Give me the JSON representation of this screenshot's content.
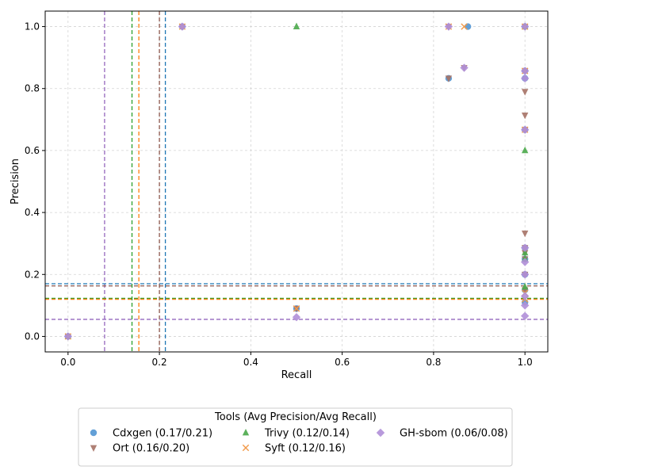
{
  "chart_data": {
    "type": "scatter",
    "xlabel": "Recall",
    "ylabel": "Precision",
    "xlim": [
      -0.05,
      1.05
    ],
    "ylim": [
      -0.05,
      1.05
    ],
    "xticks": [
      "0.0",
      "0.2",
      "0.4",
      "0.6",
      "0.8",
      "1.0"
    ],
    "yticks": [
      "0.0",
      "0.2",
      "0.4",
      "0.6",
      "0.8",
      "1.0"
    ],
    "grid": true,
    "legend": {
      "title": "Tools (Avg Precision/Avg Recall)",
      "placement": "bottom-center",
      "columns": 3
    },
    "series": [
      {
        "name": "Cdxgen (0.17/0.21)",
        "marker": "circle",
        "color": "#5b9bd5",
        "avg_precision": 0.17,
        "avg_recall": 0.21,
        "points": [
          [
            0.0,
            0.0
          ],
          [
            0.25,
            1.0
          ],
          [
            0.833,
            0.833
          ],
          [
            0.875,
            1.0
          ],
          [
            0.5,
            0.09
          ],
          [
            1.0,
            1.0
          ],
          [
            1.0,
            0.857
          ],
          [
            1.0,
            0.833
          ],
          [
            1.0,
            0.667
          ],
          [
            1.0,
            0.286
          ],
          [
            1.0,
            0.25
          ],
          [
            1.0,
            0.2
          ],
          [
            1.0,
            0.15
          ],
          [
            1.0,
            0.11
          ]
        ]
      },
      {
        "name": "Ort (0.16/0.20)",
        "marker": "triangle-down",
        "color": "#a67266",
        "avg_precision": 0.16,
        "avg_recall": 0.2,
        "points": [
          [
            0.0,
            0.0
          ],
          [
            0.25,
            1.0
          ],
          [
            0.833,
            1.0
          ],
          [
            0.833,
            0.833
          ],
          [
            0.867,
            0.867
          ],
          [
            0.5,
            0.09
          ],
          [
            1.0,
            1.0
          ],
          [
            1.0,
            0.857
          ],
          [
            1.0,
            0.79
          ],
          [
            1.0,
            0.714
          ],
          [
            1.0,
            0.667
          ],
          [
            1.0,
            0.333
          ],
          [
            1.0,
            0.286
          ],
          [
            1.0,
            0.27
          ],
          [
            1.0,
            0.25
          ],
          [
            1.0,
            0.2
          ],
          [
            1.0,
            0.15
          ]
        ]
      },
      {
        "name": "Trivy (0.12/0.14)",
        "marker": "triangle-up",
        "color": "#4aa84a",
        "avg_precision": 0.12,
        "avg_recall": 0.14,
        "points": [
          [
            0.0,
            0.0
          ],
          [
            0.5,
            1.0
          ],
          [
            1.0,
            1.0
          ],
          [
            1.0,
            0.6
          ],
          [
            1.0,
            0.27
          ],
          [
            1.0,
            0.25
          ],
          [
            1.0,
            0.16
          ]
        ]
      },
      {
        "name": "Syft (0.12/0.16)",
        "marker": "x",
        "color": "#f29a4a",
        "avg_precision": 0.12,
        "avg_recall": 0.16,
        "points": [
          [
            0.0,
            0.0
          ],
          [
            0.25,
            1.0
          ],
          [
            0.833,
            1.0
          ],
          [
            0.867,
            1.0
          ],
          [
            0.5,
            0.09
          ],
          [
            1.0,
            1.0
          ],
          [
            1.0,
            0.857
          ],
          [
            1.0,
            0.667
          ],
          [
            1.0,
            0.14
          ],
          [
            1.0,
            0.12
          ]
        ]
      },
      {
        "name": "GH-sbom (0.06/0.08)",
        "marker": "diamond",
        "color": "#b08fd8",
        "avg_precision": 0.06,
        "avg_recall": 0.08,
        "points": [
          [
            0.0,
            0.0
          ],
          [
            0.25,
            1.0
          ],
          [
            0.833,
            1.0
          ],
          [
            0.867,
            0.867
          ],
          [
            0.5,
            0.062
          ],
          [
            1.0,
            1.0
          ],
          [
            1.0,
            0.857
          ],
          [
            1.0,
            0.833
          ],
          [
            1.0,
            0.667
          ],
          [
            1.0,
            0.286
          ],
          [
            1.0,
            0.24
          ],
          [
            1.0,
            0.2
          ],
          [
            1.0,
            0.13
          ],
          [
            1.0,
            0.1
          ],
          [
            1.0,
            0.066
          ]
        ]
      }
    ],
    "reference_lines": {
      "vertical": [
        {
          "series": "Cdxgen (0.17/0.21)",
          "x": 0.213,
          "color": "#1f77b4"
        },
        {
          "series": "Ort (0.16/0.20)",
          "x": 0.2,
          "color": "#8c564b"
        },
        {
          "series": "Trivy (0.12/0.14)",
          "x": 0.14,
          "color": "#2ca02c"
        },
        {
          "series": "Syft (0.12/0.16)",
          "x": 0.155,
          "color": "#ff7f0e"
        },
        {
          "series": "GH-sbom (0.06/0.08)",
          "x": 0.08,
          "color": "#9467bd"
        }
      ],
      "horizontal": [
        {
          "series": "Cdxgen (0.17/0.21)",
          "y": 0.17,
          "color": "#1f77b4"
        },
        {
          "series": "Ort (0.16/0.20)",
          "y": 0.163,
          "color": "#8c564b"
        },
        {
          "series": "Trivy (0.12/0.14)",
          "y": 0.123,
          "color": "#2ca02c"
        },
        {
          "series": "Syft (0.12/0.16)",
          "y": 0.12,
          "color": "#ff7f0e"
        },
        {
          "series": "GH-sbom (0.06/0.08)",
          "y": 0.055,
          "color": "#9467bd"
        }
      ]
    }
  }
}
